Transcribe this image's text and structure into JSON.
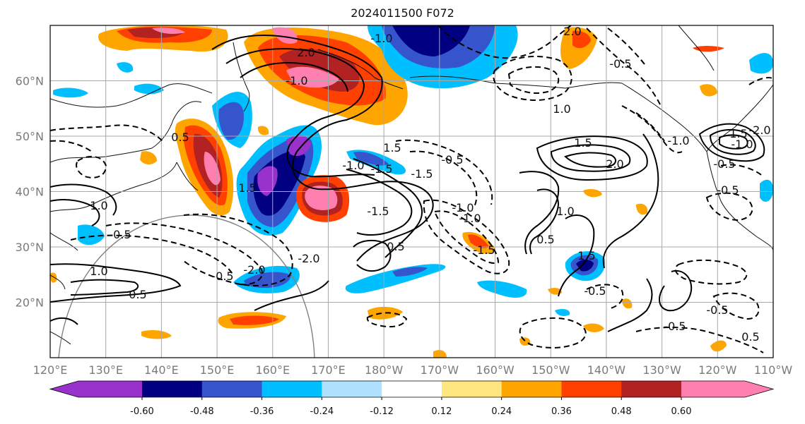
{
  "title": "2024011500 F072",
  "map": {
    "lon_labels": [
      "120°E",
      "130°E",
      "140°E",
      "150°E",
      "160°E",
      "170°E",
      "180°W",
      "170°W",
      "160°W",
      "150°W",
      "140°W",
      "130°W",
      "120°W",
      "110°W"
    ],
    "lat_labels": [
      "20°N",
      "30°N",
      "40°N",
      "50°N",
      "60°N"
    ],
    "contour_labels": [
      "2.0",
      "2.0",
      "1.5",
      "0.5",
      "-1.0",
      "-1.0",
      "1.5",
      "-0.5",
      "-0.5",
      "2.0",
      "-1.0",
      "1.5",
      "1.0",
      "-1.5",
      "-2.0",
      "-2.0",
      "1.0",
      "0.5",
      "-1.0",
      "-1.5",
      "-1.5",
      "0.5",
      "1.5",
      "1.0",
      "-0.5",
      "-0.5",
      "-2.0",
      "-1.0",
      "1.5",
      "-0.5",
      "-1.5",
      "-1.0",
      "1.0",
      "-1.0",
      "-0.5",
      "-0.5",
      "0.5",
      "-0.5",
      "-0.5",
      "0.5"
    ]
  },
  "colorbar": {
    "colors": [
      "#9932cc",
      "#000080",
      "#3655cc",
      "#00bfff",
      "#b0e2ff",
      "#ffffff",
      "#ffe680",
      "#ffa500",
      "#ff4000",
      "#b22222",
      "#ff80b0"
    ],
    "tick_labels": [
      "-0.60",
      "-0.48",
      "-0.36",
      "-0.24",
      "-0.12",
      "0.12",
      "0.24",
      "0.36",
      "0.48",
      "0.60"
    ]
  }
}
